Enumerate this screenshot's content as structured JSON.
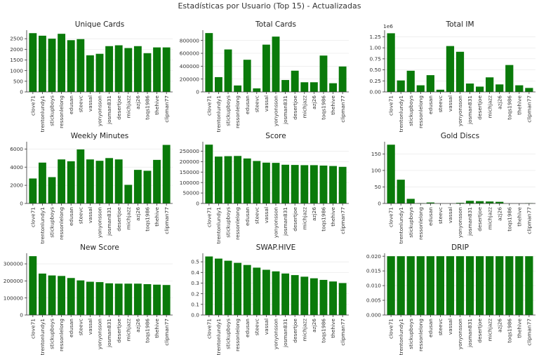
{
  "suptitle": "Estadísticas por Usuario (Top 15) - Actualizadas",
  "colors": {
    "bar": "#0a7a0a",
    "grid": "#e6e6e6",
    "axis": "#333333"
  },
  "chart_data": [
    {
      "type": "bar",
      "title": "Unique Cards",
      "grid": true,
      "categories": [
        "clove71",
        "trentonlundy1",
        "stickupboys",
        "ressonlelong",
        "edusan",
        "steevc",
        "vassal",
        "yonyonsson",
        "josman831",
        "desertjoe",
        "michjazz",
        "azj26",
        "toqs1986",
        "thehive",
        "clipman77"
      ],
      "values": [
        2760,
        2640,
        2500,
        2730,
        2430,
        2480,
        1720,
        1790,
        2150,
        2190,
        2060,
        2150,
        1820,
        2090,
        2090
      ],
      "ylim": [
        0,
        2900
      ],
      "yticks": [
        0,
        500,
        1000,
        1500,
        2000,
        2500
      ]
    },
    {
      "type": "bar",
      "title": "Total Cards",
      "grid": true,
      "categories": [
        "clove71",
        "trentonlundy1",
        "stickupboys",
        "ressonlelong",
        "edusan",
        "steevc",
        "vassal",
        "yonyonsson",
        "josman831",
        "desertjoe",
        "michjazz",
        "azj26",
        "toqs1986",
        "thehive",
        "clipman77"
      ],
      "values": [
        915000,
        230000,
        660000,
        100000,
        500000,
        55000,
        735000,
        860000,
        185000,
        330000,
        150000,
        150000,
        565000,
        135000,
        395000
      ],
      "ylim": [
        0,
        960000
      ],
      "yticks": [
        0,
        200000,
        400000,
        600000,
        800000
      ]
    },
    {
      "type": "bar",
      "title": "Total IM",
      "grid": true,
      "offset_label": "1e6",
      "categories": [
        "clove71",
        "trentonlundy1",
        "stickupboys",
        "ressonlelong",
        "edusan",
        "steevc",
        "vassal",
        "yonyonsson",
        "josman831",
        "desertjoe",
        "michjazz",
        "azj26",
        "toqs1986",
        "thehive",
        "clipman77"
      ],
      "values": [
        1.33,
        0.26,
        0.48,
        0.15,
        0.38,
        0.05,
        1.04,
        0.91,
        0.19,
        0.12,
        0.33,
        0.17,
        0.61,
        0.15,
        0.09
      ],
      "ylim": [
        0,
        1.4
      ],
      "yticks": [
        0.0,
        0.25,
        0.5,
        0.75,
        1.0,
        1.25
      ],
      "ytick_labels": [
        "0.00",
        "0.25",
        "0.50",
        "0.75",
        "1.00",
        "1.25"
      ]
    },
    {
      "type": "bar",
      "title": "Weekly Minutes",
      "grid": true,
      "categories": [
        "clove71",
        "trentonlundy1",
        "stickupboys",
        "ressonlelong",
        "edusan",
        "steevc",
        "vassal",
        "yonyonsson",
        "josman831",
        "desertjoe",
        "michjazz",
        "azj26",
        "toqs1986",
        "thehive",
        "clipman77"
      ],
      "values": [
        2750,
        4500,
        2900,
        4850,
        4650,
        5950,
        4850,
        4700,
        5000,
        4850,
        2050,
        3700,
        3600,
        4800,
        6450
      ],
      "ylim": [
        0,
        6800
      ],
      "yticks": [
        0,
        2000,
        4000,
        6000
      ]
    },
    {
      "type": "bar",
      "title": "Score",
      "grid": true,
      "categories": [
        "clove71",
        "trentonlundy1",
        "stickupboys",
        "ressonlelong",
        "edusan",
        "steevc",
        "vassal",
        "yonyonsson",
        "josman831",
        "desertjoe",
        "michjazz",
        "azj26",
        "toqs1986",
        "thehive",
        "clipman77"
      ],
      "values": [
        281000,
        224000,
        226000,
        227000,
        215000,
        203000,
        195000,
        194000,
        185000,
        184000,
        183000,
        183000,
        181000,
        179000,
        175000
      ],
      "ylim": [
        0,
        295000
      ],
      "yticks": [
        0,
        50000,
        100000,
        150000,
        200000,
        250000
      ]
    },
    {
      "type": "bar",
      "title": "Gold Discs",
      "grid": true,
      "categories": [
        "clove71",
        "trentonlundy1",
        "stickupboys",
        "ressonlelong",
        "edusan",
        "steevc",
        "vassal",
        "yonyonsson",
        "josman831",
        "desertjoe",
        "michjazz",
        "azj26",
        "toqs1986",
        "thehive",
        "clipman77"
      ],
      "values": [
        178,
        72,
        14,
        1,
        3,
        0,
        0,
        2,
        8,
        7,
        6,
        5,
        0,
        0,
        1
      ],
      "ylim": [
        0,
        187
      ],
      "yticks": [
        0,
        50,
        100,
        150
      ]
    },
    {
      "type": "bar",
      "title": "New Score",
      "grid": true,
      "categories": [
        "clove71",
        "trentonlundy1",
        "stickupboys",
        "ressonlelong",
        "edusan",
        "steevc",
        "vassal",
        "yonyonsson",
        "josman831",
        "desertjoe",
        "michjazz",
        "azj26",
        "toqs1986",
        "thehive",
        "clipman77"
      ],
      "values": [
        345000,
        243000,
        232000,
        229000,
        217000,
        203000,
        195000,
        193000,
        186000,
        184000,
        184000,
        184000,
        181000,
        178000,
        176000
      ],
      "ylim": [
        0,
        362000
      ],
      "yticks": [
        0,
        100000,
        200000,
        300000
      ]
    },
    {
      "type": "bar",
      "title": "SWAP.HIVE",
      "grid": true,
      "categories": [
        "clove71",
        "trentonlundy1",
        "stickupboys",
        "ressonlelong",
        "edusan",
        "steevc",
        "vassal",
        "yonyonsson",
        "josman831",
        "desertjoe",
        "michjazz",
        "azj26",
        "toqs1986",
        "thehive",
        "clipman77"
      ],
      "values": [
        0.55,
        0.53,
        0.51,
        0.49,
        0.47,
        0.445,
        0.425,
        0.41,
        0.39,
        0.375,
        0.36,
        0.345,
        0.33,
        0.315,
        0.3
      ],
      "ylim": [
        0,
        0.58
      ],
      "yticks": [
        0.0,
        0.1,
        0.2,
        0.3,
        0.4,
        0.5
      ],
      "ytick_labels": [
        "0.0",
        "0.1",
        "0.2",
        "0.3",
        "0.4",
        "0.5"
      ]
    },
    {
      "type": "bar",
      "title": "DRIP",
      "grid": true,
      "categories": [
        "clove71",
        "trentonlundy1",
        "stickupboys",
        "ressonlelong",
        "edusan",
        "steevc",
        "vassal",
        "yonyonsson",
        "josman831",
        "desertjoe",
        "michjazz",
        "azj26",
        "toqs1986",
        "thehive",
        "clipman77"
      ],
      "values": [
        0.02,
        0.02,
        0.02,
        0.02,
        0.02,
        0.02,
        0.02,
        0.02,
        0.02,
        0.02,
        0.02,
        0.02,
        0.02,
        0.02,
        0.02
      ],
      "ylim": [
        0,
        0.021
      ],
      "yticks": [
        0.0,
        0.005,
        0.01,
        0.015,
        0.02
      ],
      "ytick_labels": [
        "0.000",
        "0.005",
        "0.010",
        "0.015",
        "0.020"
      ]
    }
  ]
}
